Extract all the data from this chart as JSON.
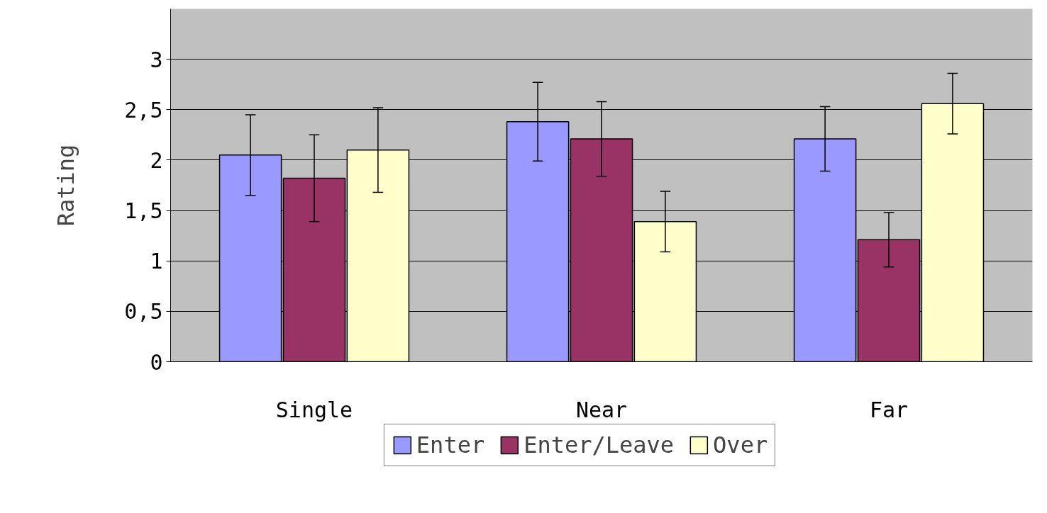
{
  "chart_data": {
    "type": "bar",
    "ylabel": "Rating",
    "categories": [
      "Single",
      "Near",
      "Far"
    ],
    "series": [
      {
        "name": "Enter",
        "color": "#9999ff",
        "values": [
          2.05,
          2.38,
          2.21
        ],
        "errors": [
          0.4,
          0.39,
          0.32
        ]
      },
      {
        "name": "Enter/Leave",
        "color": "#993366",
        "values": [
          1.82,
          2.21,
          1.21
        ],
        "errors": [
          0.43,
          0.37,
          0.27
        ]
      },
      {
        "name": "Over",
        "color": "#ffffcc",
        "values": [
          2.1,
          1.39,
          2.56
        ],
        "errors": [
          0.42,
          0.3,
          0.3
        ]
      }
    ],
    "ylim": [
      0,
      3.5
    ],
    "yticks": [
      0,
      {
        "value": 0.5,
        "label": "0,5"
      },
      1,
      {
        "value": 1.5,
        "label": "1,5"
      },
      2,
      {
        "value": 2.5,
        "label": "2,5"
      },
      3
    ],
    "grid": "y",
    "legend": "bottom"
  }
}
